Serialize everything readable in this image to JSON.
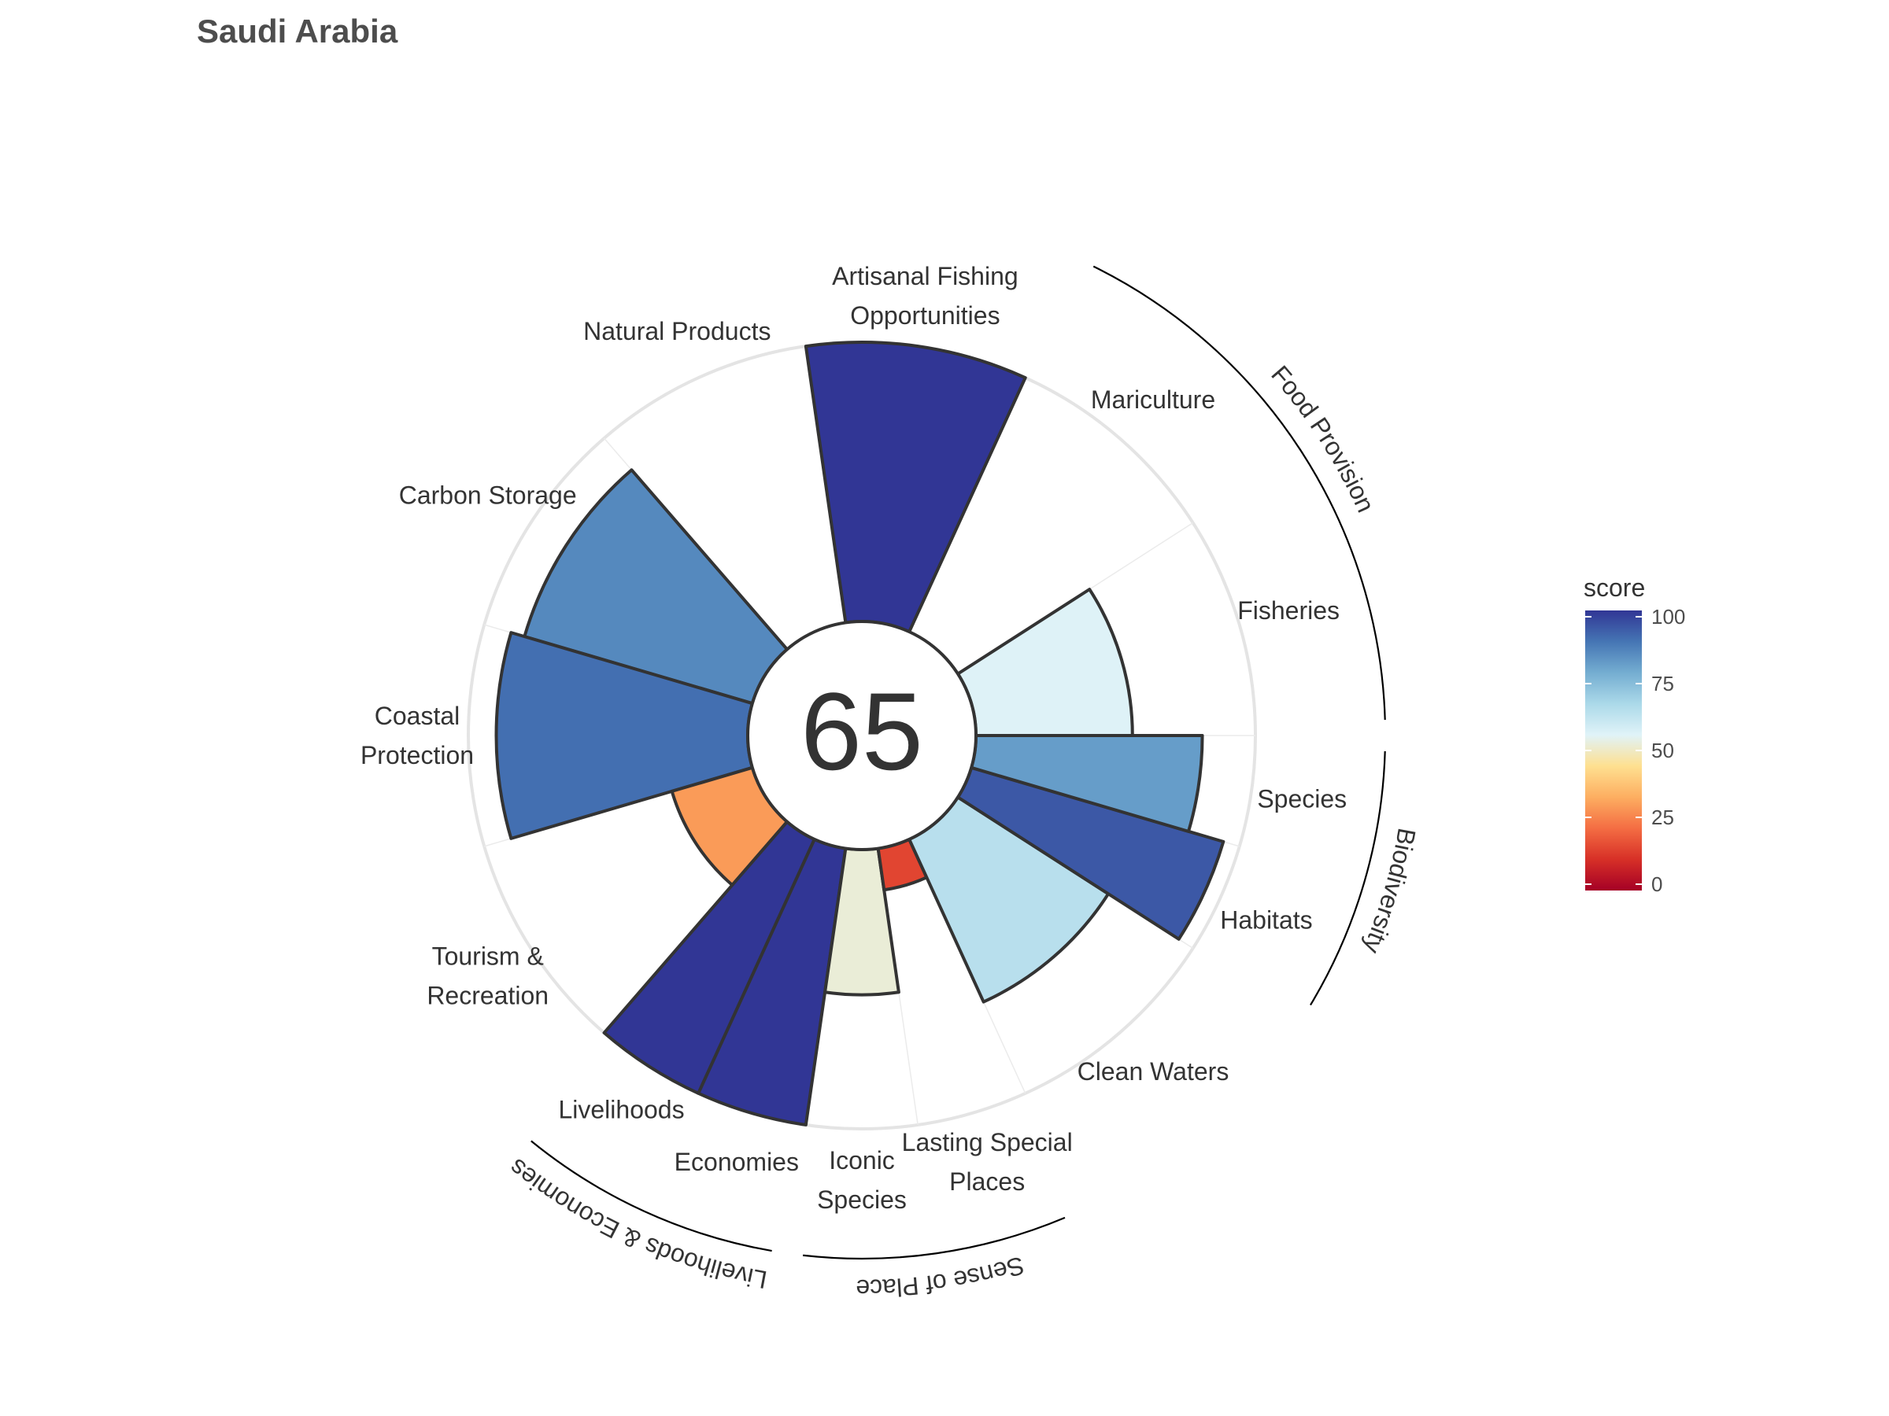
{
  "title": "Saudi Arabia",
  "center_score": "65",
  "chart_data": {
    "type": "polar-bar",
    "title": "Saudi Arabia",
    "rlim": [
      0,
      100
    ],
    "series": [
      {
        "goal": "Fisheries",
        "label_lines": [
          "Fisheries"
        ],
        "score": 56,
        "weight": 1
      },
      {
        "goal": "Mariculture",
        "label_lines": [
          "Mariculture"
        ],
        "score": 0,
        "weight": 1
      },
      {
        "goal": "Artisanal Fishing Opportunities",
        "label_lines": [
          "Artisanal Fishing",
          "Opportunities"
        ],
        "score": 100,
        "weight": 1
      },
      {
        "goal": "Natural Products",
        "label_lines": [
          "Natural Products"
        ],
        "score": null,
        "weight": 1
      },
      {
        "goal": "Carbon Storage",
        "label_lines": [
          "Carbon Storage"
        ],
        "score": 85,
        "weight": 1
      },
      {
        "goal": "Coastal Protection",
        "label_lines": [
          "Coastal",
          "Protection"
        ],
        "score": 90,
        "weight": 1
      },
      {
        "goal": "Tourism & Recreation",
        "label_lines": [
          "Tourism &",
          "Recreation"
        ],
        "score": 30,
        "weight": 1
      },
      {
        "goal": "Livelihoods",
        "label_lines": [
          "Livelihoods"
        ],
        "score": 100,
        "weight": 0.5
      },
      {
        "goal": "Economies",
        "label_lines": [
          "Economies"
        ],
        "score": 100,
        "weight": 0.5
      },
      {
        "goal": "Iconic Species",
        "label_lines": [
          "Iconic",
          "Species"
        ],
        "score": 52,
        "weight": 0.5
      },
      {
        "goal": "Lasting Special Places",
        "label_lines": [
          "Lasting Special",
          "Places"
        ],
        "score": 15,
        "weight": 0.5
      },
      {
        "goal": "Clean Waters",
        "label_lines": [
          "Clean Waters"
        ],
        "score": 64,
        "weight": 1
      },
      {
        "goal": "Habitats",
        "label_lines": [
          "Habitats"
        ],
        "score": 94,
        "weight": 0.5
      },
      {
        "goal": "Species",
        "label_lines": [
          "Species"
        ],
        "score": 81,
        "weight": 0.5
      }
    ],
    "groups": [
      {
        "name": "Food Provision",
        "goals": [
          "Fisheries",
          "Mariculture"
        ]
      },
      {
        "name": "Biodiversity",
        "goals": [
          "Species",
          "Habitats"
        ]
      },
      {
        "name": "Sense of Place",
        "goals": [
          "Iconic Species",
          "Lasting Special Places"
        ]
      },
      {
        "name": "Livelihoods & Economies",
        "goals": [
          "Livelihoods",
          "Economies"
        ]
      }
    ],
    "legend": {
      "title": "score",
      "position": "right",
      "ticks": [
        "100",
        "75",
        "50",
        "25",
        "0"
      ],
      "colorscale": [
        "#a50026",
        "#d73027",
        "#f46d43",
        "#fdae61",
        "#fee090",
        "#e0f3f8",
        "#abd9e9",
        "#74add1",
        "#4575b4",
        "#313695"
      ]
    },
    "colors": {
      "background_ring": "#e4e4e4",
      "bar_outline": "#333333",
      "text": "#333333"
    }
  }
}
